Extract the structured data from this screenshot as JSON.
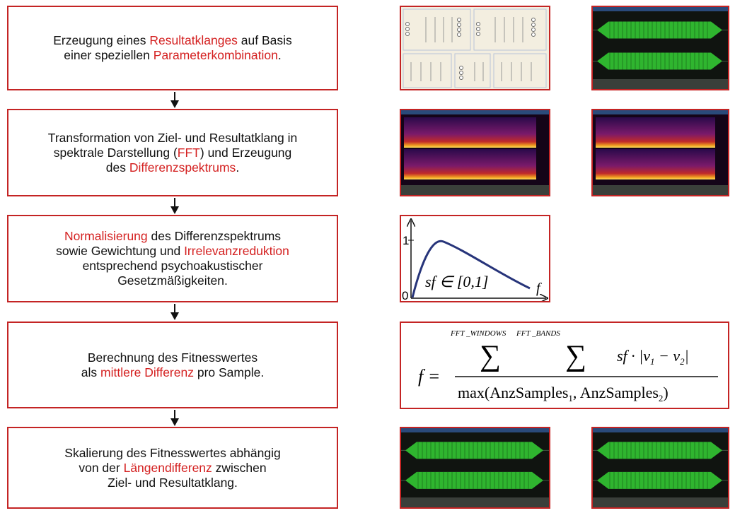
{
  "steps": [
    {
      "lines": [
        [
          "Erzeugung eines ",
          {
            "text": "Resultatklanges",
            "color": "#d42020"
          },
          " auf Basis"
        ],
        [
          "einer speziellen ",
          {
            "text": "Parameterkombination",
            "color": "#d42020"
          },
          "."
        ]
      ]
    },
    {
      "lines": [
        [
          "Transformation von Ziel- und Resultatklang in"
        ],
        [
          "spektrale Darstellung (",
          {
            "text": "FFT",
            "color": "#d42020"
          },
          ") und Erzeugung"
        ],
        [
          "des ",
          {
            "text": "Differenzspektrums",
            "color": "#d42020"
          },
          "."
        ]
      ]
    },
    {
      "lines": [
        [
          {
            "text": "Normalisierung",
            "color": "#d42020"
          },
          " des Differenzspektrums"
        ],
        [
          "sowie Gewichtung und ",
          {
            "text": "Irrelevanzreduktion",
            "color": "#d42020"
          }
        ],
        [
          "entsprechend psychoakustischer"
        ],
        [
          "Gesetzmäßigkeiten."
        ]
      ]
    },
    {
      "lines": [
        [
          "Berechnung des Fitnesswertes"
        ],
        [
          "als ",
          {
            "text": "mittlere Differenz",
            "color": "#d42020"
          },
          " pro Sample."
        ]
      ]
    },
    {
      "lines": [
        [
          "Skalierung des Fitnesswertes abhängig"
        ],
        [
          "von der ",
          {
            "text": "Längendifferenz",
            "color": "#d42020"
          },
          " zwischen"
        ],
        [
          "Ziel- und Resultatklang."
        ]
      ]
    }
  ],
  "graph": {
    "y_tick": "1",
    "origin": "0",
    "label": "sf ∈ [0,1]",
    "x_label": "f"
  },
  "formula": {
    "upper_outer": "FFT _WINDOWS",
    "upper_inner": "FFT _BANDS",
    "lhs": "f =",
    "sum": "∑",
    "term": "sf · |v",
    "sub1": "1",
    "minus": " − v",
    "sub2": "2",
    "bar": "|",
    "denominator": "max(AnzSamples",
    "den_sub1": "1",
    "den_mid": ", AnzSamples",
    "den_sub2": "2",
    "den_end": ")"
  }
}
